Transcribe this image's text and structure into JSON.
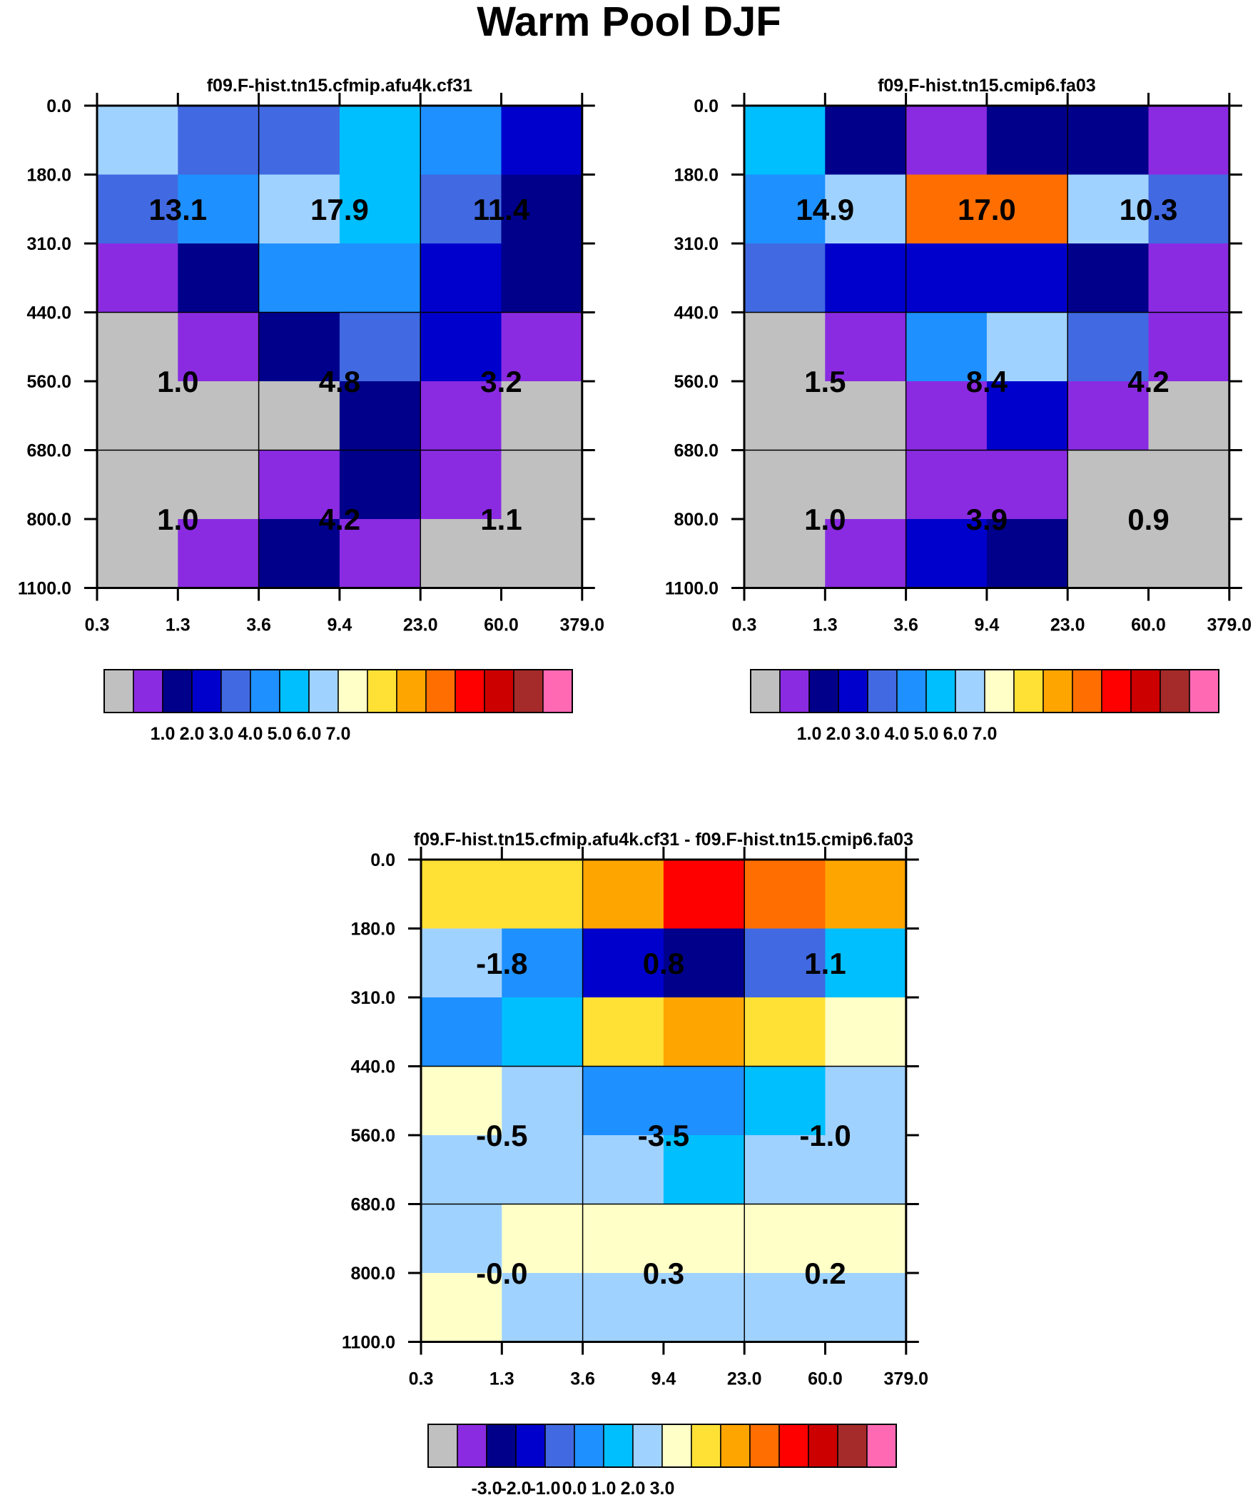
{
  "title": "Warm Pool DJF",
  "palette": [
    "#c0c0c0",
    "#8a2be2",
    "#00008b",
    "#0000cd",
    "#4169e1",
    "#1e90ff",
    "#00bfff",
    "#a0d2ff",
    "#ffffc8",
    "#ffe135",
    "#ffa500",
    "#ff6e00",
    "#ff0000",
    "#cd0000",
    "#a52a2a",
    "#ff69b4"
  ],
  "chart_data": [
    {
      "type": "heatmap",
      "title": "f09.F-hist.tn15.cfmip.afu4k.cf31",
      "x_ticks": [
        "0.3",
        "1.3",
        "3.6",
        "9.4",
        "23.0",
        "60.0",
        "379.0"
      ],
      "y_ticks": [
        "0.0",
        "180.0",
        "310.0",
        "440.0",
        "560.0",
        "680.0",
        "800.0",
        "1100.0"
      ],
      "cell_colors": [
        [
          7,
          4,
          4,
          6,
          5,
          3
        ],
        [
          4,
          5,
          7,
          6,
          4,
          2
        ],
        [
          1,
          2,
          5,
          5,
          3,
          2
        ],
        [
          0,
          1,
          2,
          4,
          3,
          1
        ],
        [
          0,
          0,
          0,
          2,
          1,
          0
        ],
        [
          0,
          0,
          1,
          2,
          1,
          0
        ],
        [
          0,
          1,
          2,
          1,
          0,
          0
        ]
      ],
      "box_values": [
        [
          "13.1",
          "17.9",
          "11.4"
        ],
        [
          "1.0",
          "4.8",
          "3.2"
        ],
        [
          "1.0",
          "4.2",
          "1.1"
        ]
      ],
      "colorbar_labels": [
        "1.0",
        "2.0",
        "3.0",
        "4.0",
        "5.0",
        "6.0",
        "7.0"
      ]
    },
    {
      "type": "heatmap",
      "title": "f09.F-hist.tn15.cmip6.fa03",
      "x_ticks": [
        "0.3",
        "1.3",
        "3.6",
        "9.4",
        "23.0",
        "60.0",
        "379.0"
      ],
      "y_ticks": [
        "0.0",
        "180.0",
        "310.0",
        "440.0",
        "560.0",
        "680.0",
        "800.0",
        "1100.0"
      ],
      "cell_colors": [
        [
          6,
          2,
          1,
          2,
          2,
          1
        ],
        [
          5,
          7,
          11,
          11,
          7,
          4
        ],
        [
          4,
          3,
          3,
          3,
          2,
          1
        ],
        [
          0,
          1,
          5,
          7,
          4,
          1
        ],
        [
          0,
          0,
          1,
          3,
          1,
          0
        ],
        [
          0,
          0,
          1,
          1,
          0,
          0
        ],
        [
          0,
          1,
          3,
          2,
          0,
          0
        ]
      ],
      "box_values": [
        [
          "14.9",
          "17.0",
          "10.3"
        ],
        [
          "1.5",
          "8.4",
          "4.2"
        ],
        [
          "1.0",
          "3.9",
          "0.9"
        ]
      ],
      "colorbar_labels": [
        "1.0",
        "2.0",
        "3.0",
        "4.0",
        "5.0",
        "6.0",
        "7.0"
      ]
    },
    {
      "type": "heatmap",
      "title": "f09.F-hist.tn15.cfmip.afu4k.cf31 - f09.F-hist.tn15.cmip6.fa03",
      "x_ticks": [
        "0.3",
        "1.3",
        "3.6",
        "9.4",
        "23.0",
        "60.0",
        "379.0"
      ],
      "y_ticks": [
        "0.0",
        "180.0",
        "310.0",
        "440.0",
        "560.0",
        "680.0",
        "800.0",
        "1100.0"
      ],
      "cell_colors": [
        [
          9,
          9,
          10,
          12,
          11,
          10
        ],
        [
          7,
          5,
          3,
          2,
          4,
          6
        ],
        [
          5,
          6,
          9,
          10,
          9,
          8
        ],
        [
          8,
          7,
          5,
          5,
          6,
          7
        ],
        [
          7,
          7,
          7,
          6,
          7,
          7
        ],
        [
          7,
          8,
          8,
          8,
          8,
          8
        ],
        [
          8,
          7,
          7,
          7,
          7,
          7
        ]
      ],
      "box_values": [
        [
          "-1.8",
          "0.8",
          "1.1"
        ],
        [
          "-0.5",
          "-3.5",
          "-1.0"
        ],
        [
          "-0.0",
          "0.3",
          "0.2"
        ]
      ],
      "colorbar_labels": [
        "-3.0",
        "-2.0",
        "-1.0",
        "0.0",
        "1.0",
        "2.0",
        "3.0"
      ]
    }
  ]
}
